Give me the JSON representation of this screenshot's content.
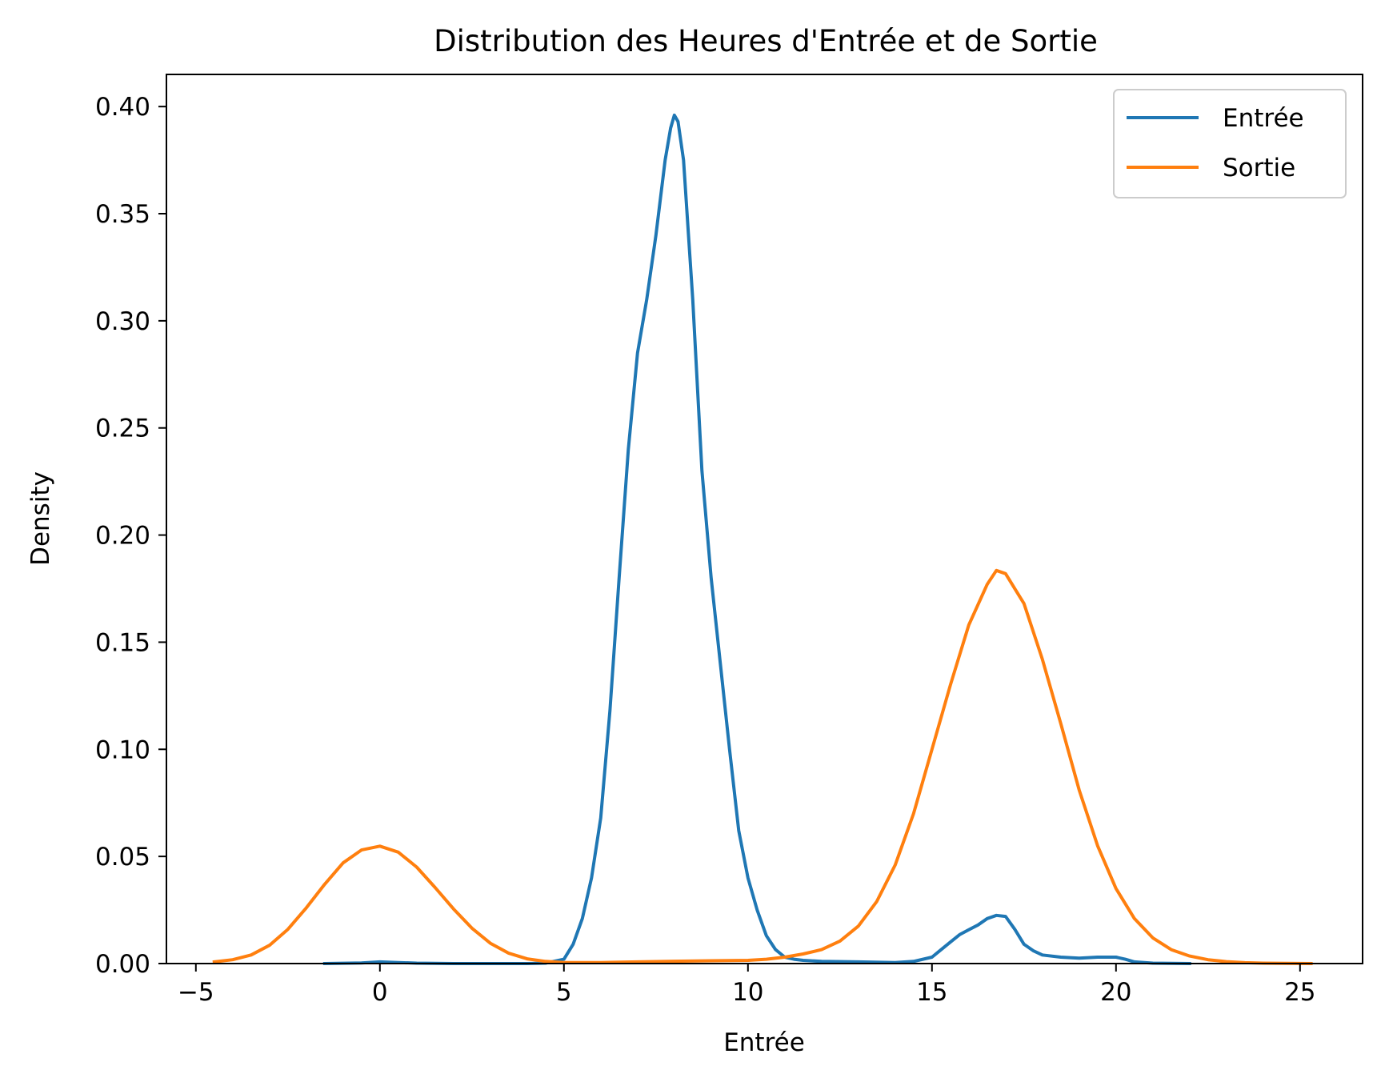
{
  "chart_data": {
    "type": "line",
    "title": "Distribution des Heures d'Entrée et de Sortie",
    "xlabel": "Entrée",
    "ylabel": "Density",
    "xlim": [
      -5.8,
      26.7
    ],
    "ylim": [
      0,
      0.415
    ],
    "xticks": [
      -5,
      0,
      5,
      10,
      15,
      20,
      25
    ],
    "xtick_labels": [
      "−5",
      "0",
      "5",
      "10",
      "15",
      "20",
      "25"
    ],
    "yticks": [
      0,
      0.05,
      0.1,
      0.15,
      0.2,
      0.25,
      0.3,
      0.35,
      0.4
    ],
    "ytick_labels": [
      "0.00",
      "0.05",
      "0.10",
      "0.15",
      "0.20",
      "0.25",
      "0.30",
      "0.35",
      "0.40"
    ],
    "grid": false,
    "legend_position": "top-right",
    "series": [
      {
        "name": "Entrée",
        "color": "#1f77b4",
        "x": [
          -1.5,
          -0.5,
          0,
          0.5,
          1,
          2,
          3,
          4,
          4.5,
          5,
          5.25,
          5.5,
          5.75,
          6,
          6.25,
          6.5,
          6.75,
          7,
          7.25,
          7.5,
          7.75,
          7.9,
          8,
          8.1,
          8.25,
          8.5,
          8.75,
          9,
          9.25,
          9.5,
          9.75,
          10,
          10.25,
          10.5,
          10.75,
          11,
          11.25,
          11.5,
          12,
          13,
          14,
          14.5,
          15,
          15.25,
          15.5,
          15.75,
          16,
          16.25,
          16.5,
          16.75,
          17,
          17.25,
          17.5,
          17.75,
          18,
          18.5,
          19,
          19.5,
          20,
          20.25,
          20.5,
          21,
          22
        ],
        "y": [
          0.0,
          0.0003,
          0.0008,
          0.0005,
          0.0002,
          0.0,
          0.0,
          0.0,
          0.0002,
          0.002,
          0.009,
          0.021,
          0.04,
          0.068,
          0.118,
          0.18,
          0.24,
          0.285,
          0.31,
          0.34,
          0.375,
          0.39,
          0.396,
          0.393,
          0.375,
          0.31,
          0.23,
          0.18,
          0.14,
          0.1,
          0.062,
          0.04,
          0.025,
          0.013,
          0.0065,
          0.003,
          0.002,
          0.0015,
          0.001,
          0.0008,
          0.0005,
          0.001,
          0.003,
          0.0065,
          0.01,
          0.0135,
          0.0158,
          0.018,
          0.021,
          0.0225,
          0.022,
          0.016,
          0.009,
          0.006,
          0.004,
          0.003,
          0.0025,
          0.003,
          0.003,
          0.002,
          0.0008,
          0.0002,
          0.0
        ]
      },
      {
        "name": "Sortie",
        "color": "#ff7f0e",
        "x": [
          -4.5,
          -4,
          -3.5,
          -3,
          -2.5,
          -2,
          -1.5,
          -1,
          -0.5,
          0,
          0.5,
          1,
          1.5,
          2,
          2.5,
          3,
          3.5,
          4,
          4.5,
          5,
          6,
          7,
          8,
          9,
          10,
          10.5,
          11,
          11.5,
          12,
          12.5,
          13,
          13.5,
          14,
          14.5,
          15,
          15.5,
          16,
          16.5,
          16.75,
          17,
          17.5,
          18,
          18.5,
          19,
          19.5,
          20,
          20.5,
          21,
          21.5,
          22,
          22.5,
          23,
          23.5,
          24,
          25.3
        ],
        "y": [
          0.0008,
          0.0018,
          0.004,
          0.0085,
          0.016,
          0.026,
          0.037,
          0.047,
          0.053,
          0.0548,
          0.052,
          0.045,
          0.0355,
          0.0255,
          0.0165,
          0.0095,
          0.0048,
          0.0022,
          0.001,
          0.0005,
          0.0005,
          0.0008,
          0.0011,
          0.0013,
          0.0015,
          0.002,
          0.003,
          0.0045,
          0.0065,
          0.0105,
          0.0175,
          0.029,
          0.046,
          0.07,
          0.1,
          0.13,
          0.158,
          0.177,
          0.1835,
          0.182,
          0.168,
          0.142,
          0.112,
          0.081,
          0.055,
          0.035,
          0.021,
          0.012,
          0.0065,
          0.0035,
          0.0018,
          0.0009,
          0.0004,
          0.0002,
          0.0
        ]
      }
    ]
  }
}
